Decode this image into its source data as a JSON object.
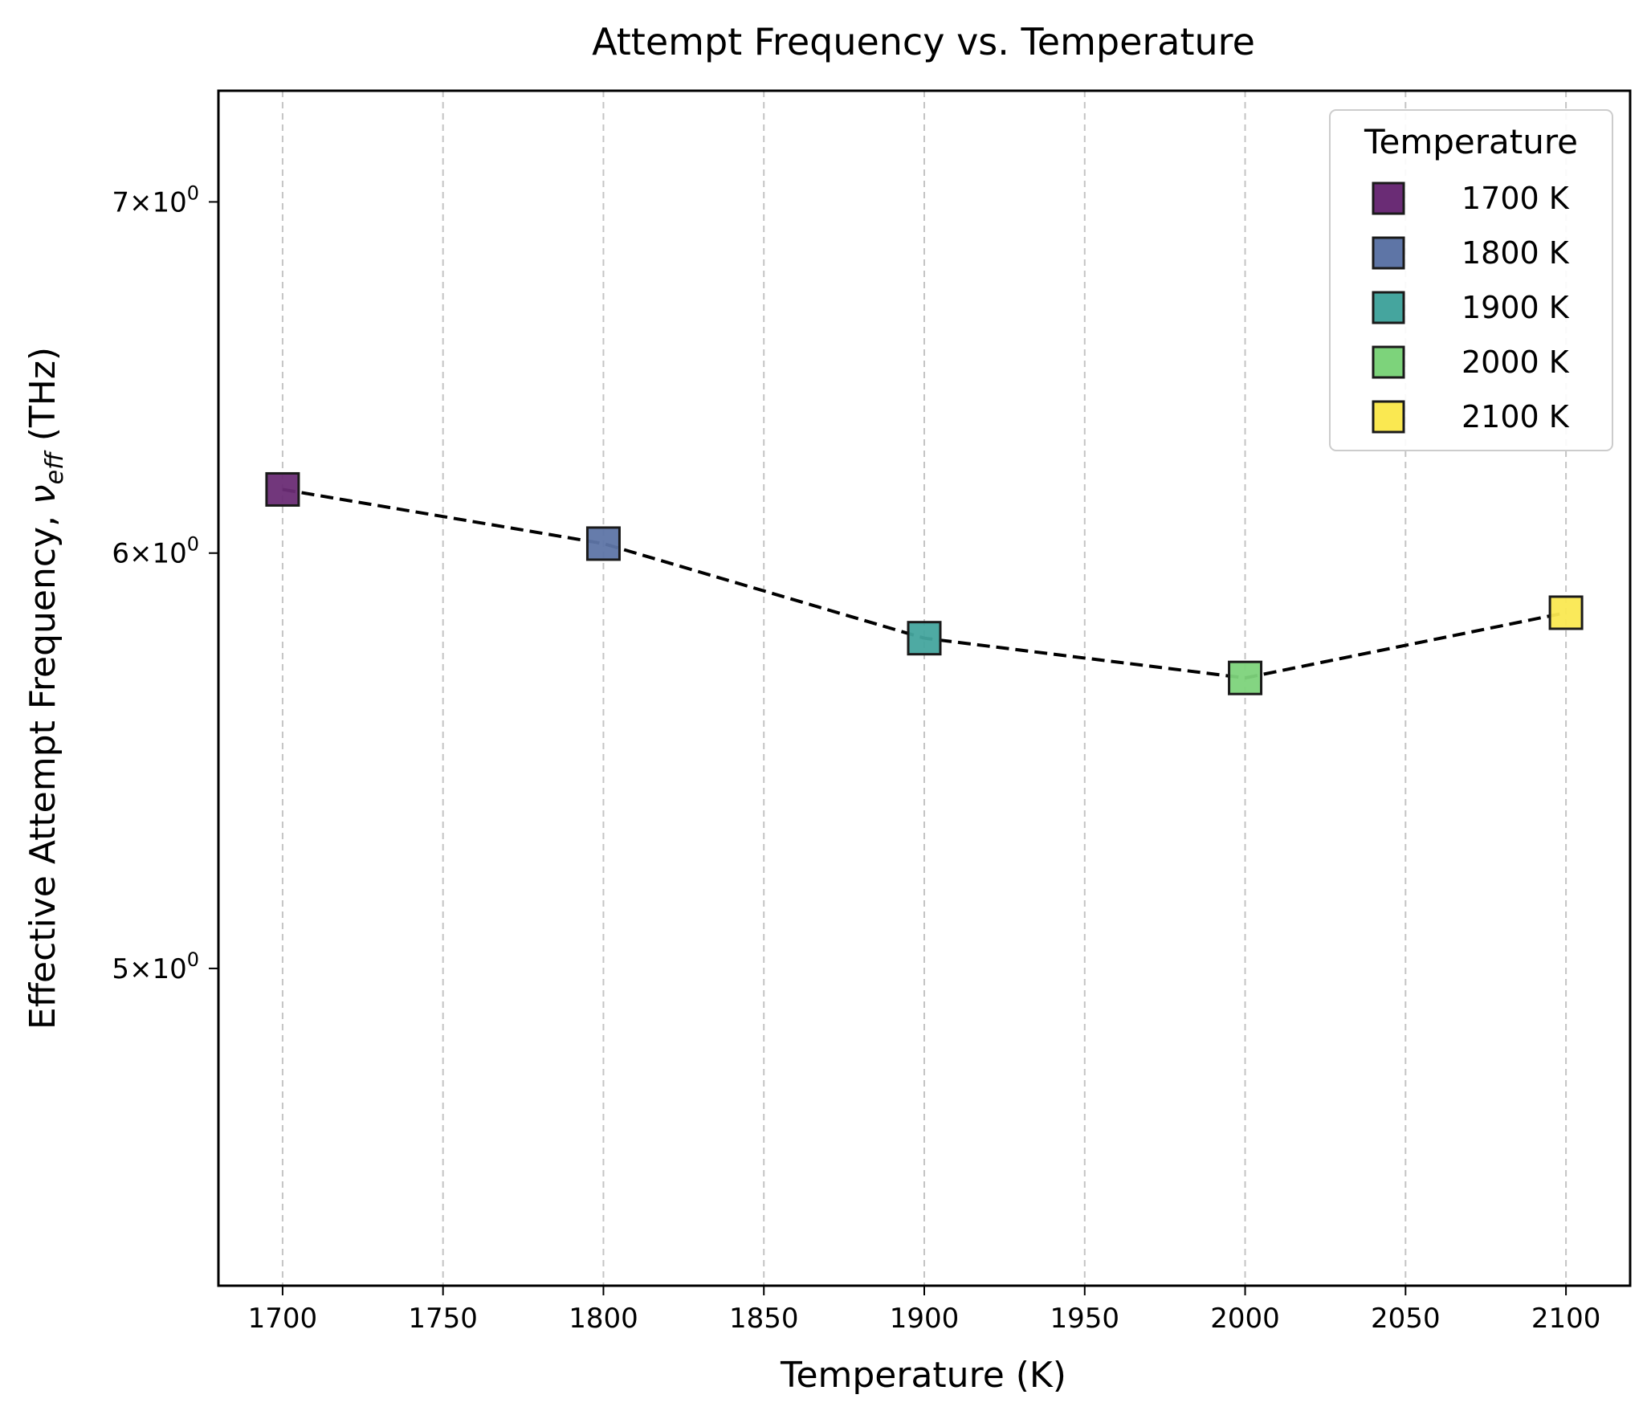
{
  "chart_data": {
    "type": "line",
    "title": "Attempt Frequency vs. Temperature",
    "xlabel": "Temperature (K)",
    "ylabel": "Effective Attempt Frequency, ν_eff (THz)",
    "ylabel_parts": {
      "main": "Effective Attempt Frequency, ",
      "nu": "ν",
      "sub": "eff",
      "unit": " (THz)"
    },
    "x": [
      1700,
      1800,
      1900,
      2000,
      2100
    ],
    "y": [
      6.17,
      6.025,
      5.78,
      5.68,
      5.845
    ],
    "xlim": [
      1680,
      2120
    ],
    "ylim": [
      4.35,
      7.35
    ],
    "yscale": "log",
    "x_ticks": [
      1700,
      1750,
      1800,
      1850,
      1900,
      1950,
      2000,
      2050,
      2100
    ],
    "y_ticks": [
      {
        "value": 5,
        "mantissa": "5",
        "times": "×",
        "base": "10",
        "exp": "0"
      },
      {
        "value": 6,
        "mantissa": "6",
        "times": "×",
        "base": "10",
        "exp": "0"
      },
      {
        "value": 7,
        "mantissa": "7",
        "times": "×",
        "base": "10",
        "exp": "0"
      }
    ],
    "grid": "vertical dashed",
    "line_style": "dashed",
    "line_color": "#000000",
    "marker": "square",
    "legend": {
      "title": "Temperature",
      "placement": "top-right",
      "entries": [
        "1700 K",
        "1800 K",
        "1900 K",
        "2000 K",
        "2100 K"
      ]
    },
    "colors": [
      "#6a2c75",
      "#5e75a6",
      "#45a59e",
      "#7dd37b",
      "#fae851"
    ]
  }
}
